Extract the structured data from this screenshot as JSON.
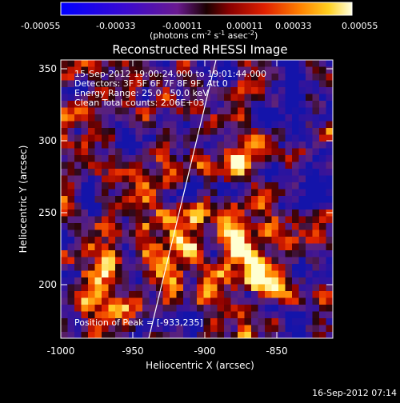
{
  "title": "Reconstructed RHESSI Image",
  "colorbar": {
    "ticks": [
      "-0.00055",
      "-0.00033",
      "-0.00011",
      "0.00011",
      "0.00033",
      "0.00055"
    ],
    "units_main": "(photons cm",
    "units_sup1": "-2",
    "units_mid1": " s",
    "units_sup2": "-1",
    "units_mid2": " asec",
    "units_sup3": "-2",
    "units_end": ")"
  },
  "info": {
    "time_range": "15-Sep-2012 19:00:24.000 to 19:01:44.000",
    "detectors": "Detectors: 3F 5F 6F 7F 8F 9F, Att 0",
    "energy_range": "Energy Range: 25.0 - 50.0 keV",
    "method": "Clean    Total counts: 2.06E+03",
    "peak_position": "Position of Peak = [-933,235]"
  },
  "axes": {
    "xlabel": "Heliocentric X (arcsec)",
    "ylabel": "Heliocentric Y (arcsec)",
    "xticks": [
      "-1000",
      "-950",
      "-900",
      "-850"
    ],
    "yticks": [
      "200",
      "250",
      "300",
      "350"
    ]
  },
  "footer": {
    "timestamp": "16-Sep-2012 07:14"
  },
  "colors": {
    "background": "#000000",
    "limb_line": "#ffffff"
  }
}
